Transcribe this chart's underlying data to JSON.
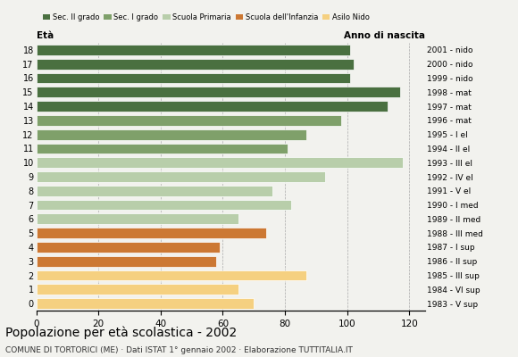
{
  "ages": [
    18,
    17,
    16,
    15,
    14,
    13,
    12,
    11,
    10,
    9,
    8,
    7,
    6,
    5,
    4,
    3,
    2,
    1,
    0
  ],
  "values": [
    101,
    102,
    101,
    117,
    113,
    98,
    87,
    81,
    118,
    93,
    76,
    82,
    65,
    74,
    59,
    58,
    87,
    65,
    70
  ],
  "right_labels": [
    "1983 - V sup",
    "1984 - VI sup",
    "1985 - III sup",
    "1986 - II sup",
    "1987 - I sup",
    "1988 - III med",
    "1989 - II med",
    "1990 - I med",
    "1991 - V el",
    "1992 - IV el",
    "1993 - III el",
    "1994 - II el",
    "1995 - I el",
    "1996 - mat",
    "1997 - mat",
    "1998 - mat",
    "1999 - nido",
    "2000 - nido",
    "2001 - nido"
  ],
  "bar_colors": [
    "#4a7040",
    "#4a7040",
    "#4a7040",
    "#4a7040",
    "#4a7040",
    "#7fa06a",
    "#7fa06a",
    "#7fa06a",
    "#b8ceaa",
    "#b8ceaa",
    "#b8ceaa",
    "#b8ceaa",
    "#b8ceaa",
    "#cc7833",
    "#cc7833",
    "#cc7833",
    "#f5d080",
    "#f5d080",
    "#f5d080"
  ],
  "legend_labels": [
    "Sec. II grado",
    "Sec. I grado",
    "Scuola Primaria",
    "Scuola dell'Infanzia",
    "Asilo Nido"
  ],
  "legend_colors": [
    "#4a7040",
    "#7fa06a",
    "#b8ceaa",
    "#cc7833",
    "#f5d080"
  ],
  "title": "Popolazione per età scolastica - 2002",
  "subtitle": "COMUNE DI TORTORICI (ME) · Dati ISTAT 1° gennaio 2002 · Elaborazione TUTTITALIA.IT",
  "xlabel_left": "Età",
  "xlabel_right": "Anno di nascita",
  "xlim": [
    0,
    125
  ],
  "xticks": [
    0,
    20,
    40,
    60,
    80,
    100,
    120
  ],
  "background_color": "#f2f2ee",
  "grid_color": "#aaaaaa"
}
